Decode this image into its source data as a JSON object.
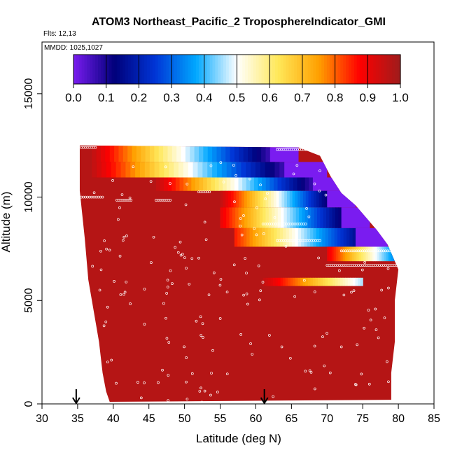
{
  "chart_data": {
    "type": "heatmap",
    "title": "ATOM3 Northeast_Pacific_2 TroposphereIndicator_GMI",
    "subtitle_flts": "Flts: 12,13",
    "subtitle_mmdd": "MMDD: 1025,1027",
    "xlabel": "Latitude (deg N)",
    "ylabel": "Altitude (m)",
    "xlim": [
      30,
      85
    ],
    "ylim": [
      0,
      17500
    ],
    "xticks": [
      "30",
      "35",
      "40",
      "45",
      "50",
      "55",
      "60",
      "65",
      "70",
      "75",
      "80",
      "85"
    ],
    "yticks": [
      "0",
      "5000",
      "10000",
      "15000"
    ],
    "colorbar": {
      "range": [
        0,
        1
      ],
      "ticks": [
        "0.0",
        "0.1",
        "0.2",
        "0.3",
        "0.4",
        "0.5",
        "0.6",
        "0.7",
        "0.8",
        "0.9",
        "1.0"
      ],
      "stops": [
        "#7a1cf0",
        "#00007a",
        "#0035d6",
        "#00a8ff",
        "#ffffff",
        "#ffe85a",
        "#ffa000",
        "#ff0000",
        "#9e1c1c"
      ]
    },
    "background_value": 0.97,
    "domain_boundary": {
      "left_edge": [
        [
          35.3,
          12500
        ],
        [
          35.3,
          10300
        ],
        [
          36,
          8000
        ],
        [
          36.5,
          6000
        ],
        [
          37,
          5000
        ],
        [
          38,
          3000
        ],
        [
          38.5,
          1500
        ],
        [
          39,
          600
        ],
        [
          39.5,
          100
        ]
      ],
      "right_edge": [
        [
          66,
          12400
        ],
        [
          69,
          12000
        ],
        [
          70.5,
          11000
        ],
        [
          72,
          10200
        ],
        [
          74,
          9600
        ],
        [
          75.5,
          9000
        ],
        [
          77,
          8400
        ],
        [
          78.5,
          7700
        ],
        [
          80,
          6500
        ],
        [
          79.5,
          5000
        ],
        [
          79.5,
          3000
        ],
        [
          79,
          1500
        ],
        [
          79,
          200
        ]
      ]
    },
    "indicator_bands": [
      {
        "alt": [
          11700,
          12500
        ],
        "x": [
          37,
          62
        ],
        "v_start": 0.95,
        "v_end": 0.05,
        "purple_to": 66
      },
      {
        "alt": [
          10950,
          11700
        ],
        "x": [
          37,
          64
        ],
        "v_start": 0.95,
        "v_end": 0.05,
        "purple_to": 70
      },
      {
        "alt": [
          10300,
          10950
        ],
        "x": [
          46,
          68
        ],
        "v_start": 0.95,
        "v_end": 0.05,
        "purple_to": 72
      },
      {
        "alt": [
          9500,
          10300
        ],
        "x": [
          55,
          70
        ],
        "v_start": 0.95,
        "v_end": 0.1,
        "purple_to": 74
      },
      {
        "alt": [
          8500,
          9500
        ],
        "x": [
          55,
          72
        ],
        "v_start": 0.9,
        "v_end": 0.1,
        "purple_to": 76
      },
      {
        "alt": [
          7600,
          8500
        ],
        "x": [
          57,
          74
        ],
        "v_start": 0.85,
        "v_end": 0.15,
        "purple_to": 78.5
      },
      {
        "alt": [
          6900,
          7600
        ],
        "x": [
          70,
          80
        ],
        "v_start": 0.9,
        "v_end": 0.3,
        "purple_to": 80
      },
      {
        "alt": [
          5700,
          6100
        ],
        "x": [
          61,
          75
        ],
        "v_start": 0.95,
        "v_end": 0.45,
        "purple_to": null
      }
    ],
    "flight_track_segments": [
      {
        "alt": 12400,
        "x": [
          35.5,
          37.5
        ]
      },
      {
        "alt": 12300,
        "x": [
          63,
          67
        ]
      },
      {
        "alt": 10000,
        "x": [
          35.5,
          38.5
        ]
      },
      {
        "alt": 9850,
        "x": [
          40.5,
          42.5
        ]
      },
      {
        "alt": 9850,
        "x": [
          46,
          48
        ]
      },
      {
        "alt": 10250,
        "x": [
          52,
          53.5
        ]
      },
      {
        "alt": 8700,
        "x": [
          61,
          67
        ]
      },
      {
        "alt": 7900,
        "x": [
          63,
          69
        ]
      },
      {
        "alt": 7400,
        "x": [
          72,
          80
        ]
      },
      {
        "alt": 6700,
        "x": [
          70,
          80
        ]
      }
    ],
    "arrows_at_x": [
      34.8,
      61.2
    ],
    "grid": false,
    "legend": "colorbar-top"
  }
}
